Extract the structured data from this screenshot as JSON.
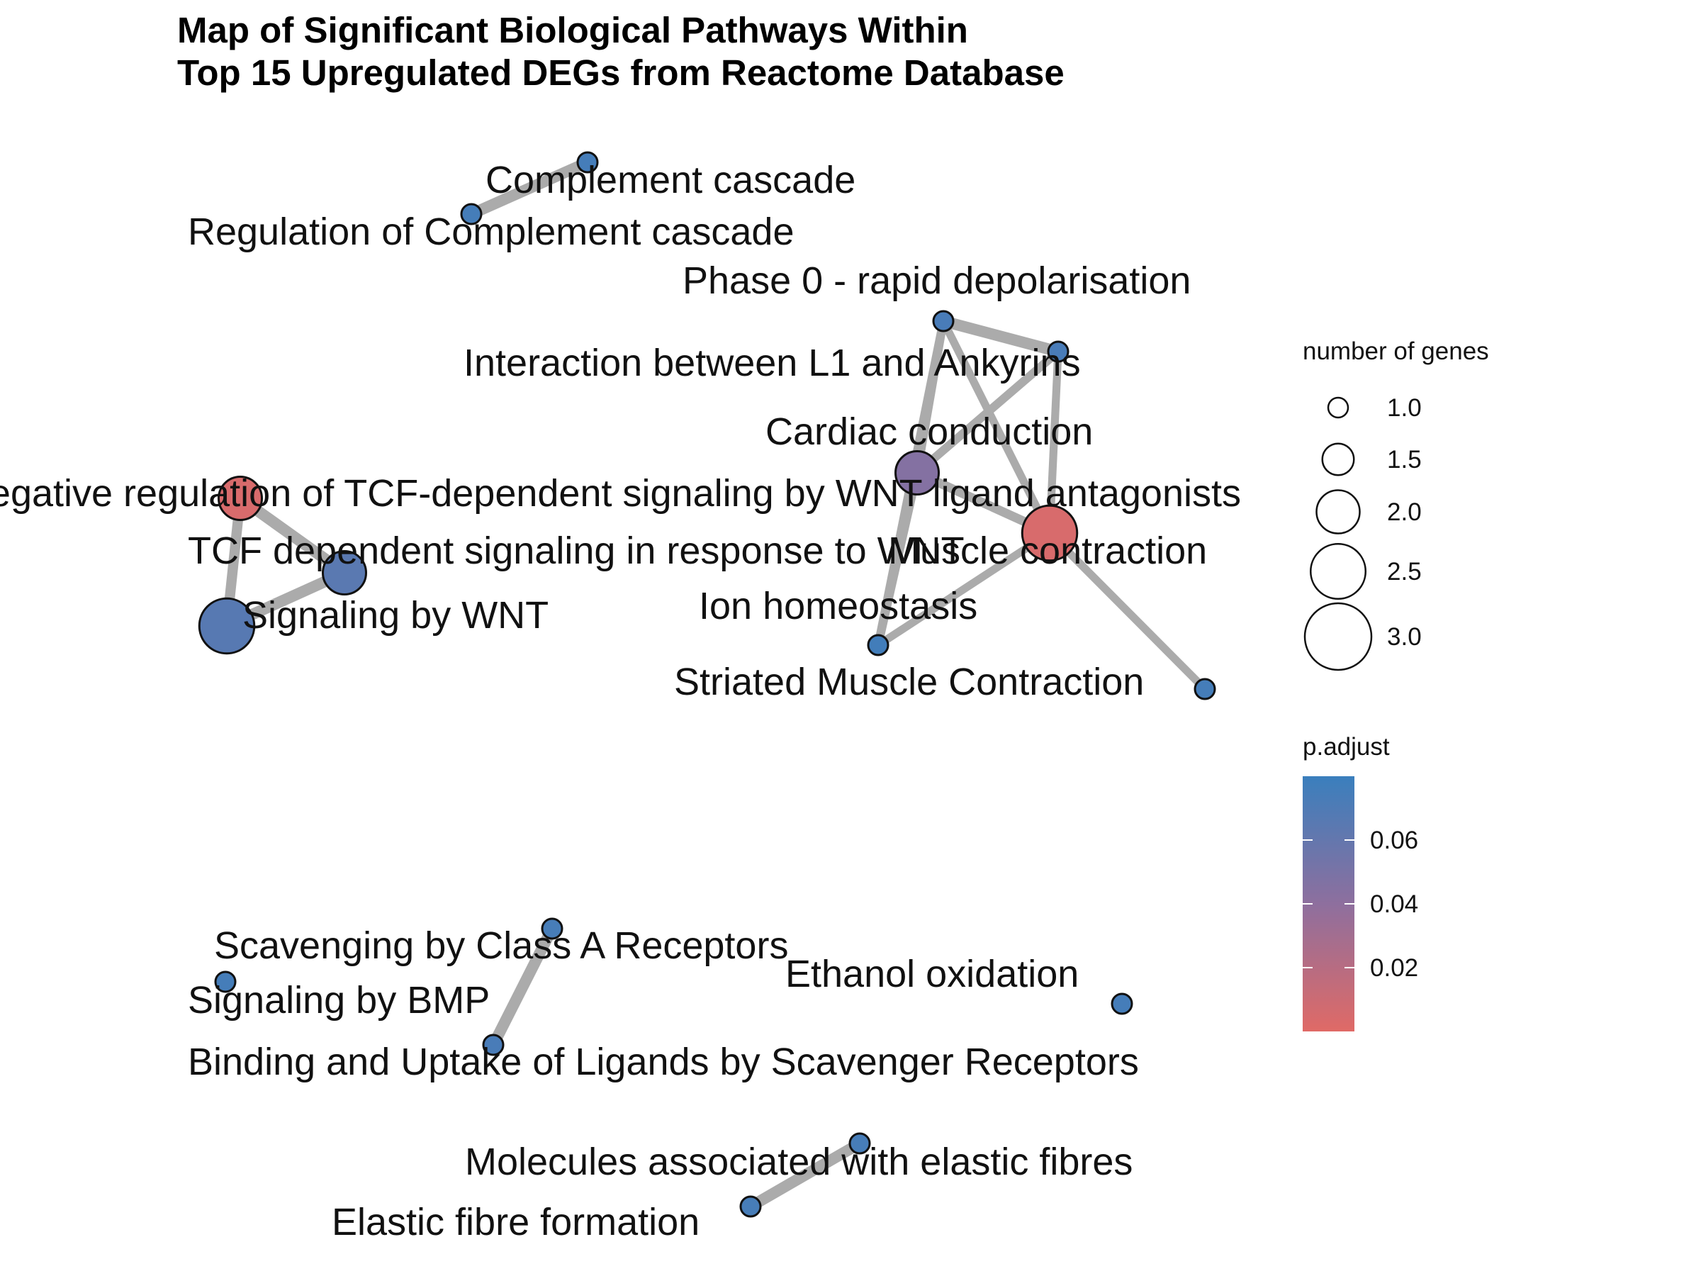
{
  "title": {
    "line1": "Map of Significant Biological Pathways Within",
    "line2": "Top 15 Upregulated DEGs from Reactome Database"
  },
  "colors": {
    "edge": "#ababab",
    "high_p": "#3a7fbd",
    "low_p": "#e06a66",
    "node_stroke": "#111111"
  },
  "legend": {
    "size_title": "number of genes",
    "size_ticks": [
      "1.0",
      "1.5",
      "2.0",
      "2.5",
      "3.0"
    ],
    "size_values": [
      1.0,
      1.5,
      2.0,
      2.5,
      3.0
    ],
    "color_title": "p.adjust",
    "color_ticks": [
      "0.06",
      "0.04",
      "0.02"
    ],
    "color_values": [
      0.06,
      0.04,
      0.02
    ],
    "color_range": [
      0.0,
      0.08
    ]
  },
  "chart_data": {
    "type": "network",
    "nodes": [
      {
        "id": "complement",
        "label": "Complement cascade",
        "genes": 1,
        "p_adjust": 0.075
      },
      {
        "id": "reg_complement",
        "label": "Regulation of Complement cascade",
        "genes": 1,
        "p_adjust": 0.075
      },
      {
        "id": "phase0",
        "label": "Phase 0 - rapid depolarisation",
        "genes": 1,
        "p_adjust": 0.073
      },
      {
        "id": "l1_ankyrins",
        "label": "Interaction between L1 and Ankyrins",
        "genes": 1,
        "p_adjust": 0.073
      },
      {
        "id": "cardiac",
        "label": "Cardiac conduction",
        "genes": 2,
        "p_adjust": 0.045
      },
      {
        "id": "muscle",
        "label": "Muscle contraction",
        "genes": 2.5,
        "p_adjust": 0.004
      },
      {
        "id": "ion_homeo",
        "label": "Ion homeostasis",
        "genes": 1,
        "p_adjust": 0.076
      },
      {
        "id": "striated",
        "label": "Striated Muscle Contraction",
        "genes": 1,
        "p_adjust": 0.075
      },
      {
        "id": "neg_tcf",
        "label": "Negative regulation of TCF-dependent signaling by WNT ligand antagonists",
        "genes": 2,
        "p_adjust": 0.004
      },
      {
        "id": "tcf_wnt",
        "label": "TCF dependent signaling in response to WNT",
        "genes": 2,
        "p_adjust": 0.065
      },
      {
        "id": "sig_wnt",
        "label": "Signaling by WNT",
        "genes": 2.5,
        "p_adjust": 0.066
      },
      {
        "id": "scav_a",
        "label": "Scavenging by Class A Receptors",
        "genes": 1,
        "p_adjust": 0.074
      },
      {
        "id": "sig_bmp",
        "label": "Signaling by BMP",
        "genes": 1,
        "p_adjust": 0.075
      },
      {
        "id": "binding_scav",
        "label": "Binding and Uptake of Ligands by Scavenger Receptors",
        "genes": 1,
        "p_adjust": 0.073
      },
      {
        "id": "ethanol",
        "label": "Ethanol oxidation",
        "genes": 1,
        "p_adjust": 0.075
      },
      {
        "id": "elastic_mol",
        "label": "Molecules associated with elastic fibres",
        "genes": 1,
        "p_adjust": 0.074
      },
      {
        "id": "elastic_form",
        "label": "Elastic fibre formation",
        "genes": 1,
        "p_adjust": 0.074
      }
    ],
    "edges": [
      {
        "source": "complement",
        "target": "reg_complement",
        "weight": 1.0
      },
      {
        "source": "phase0",
        "target": "l1_ankyrins",
        "weight": 1.0
      },
      {
        "source": "phase0",
        "target": "cardiac",
        "weight": 0.5
      },
      {
        "source": "phase0",
        "target": "muscle",
        "weight": 0.4
      },
      {
        "source": "phase0",
        "target": "ion_homeo",
        "weight": 0.5
      },
      {
        "source": "l1_ankyrins",
        "target": "cardiac",
        "weight": 0.5
      },
      {
        "source": "l1_ankyrins",
        "target": "muscle",
        "weight": 0.4
      },
      {
        "source": "cardiac",
        "target": "muscle",
        "weight": 0.6
      },
      {
        "source": "cardiac",
        "target": "ion_homeo",
        "weight": 0.5
      },
      {
        "source": "muscle",
        "target": "ion_homeo",
        "weight": 0.4
      },
      {
        "source": "muscle",
        "target": "striated",
        "weight": 0.4
      },
      {
        "source": "neg_tcf",
        "target": "tcf_wnt",
        "weight": 1.0
      },
      {
        "source": "neg_tcf",
        "target": "sig_wnt",
        "weight": 0.8
      },
      {
        "source": "tcf_wnt",
        "target": "sig_wnt",
        "weight": 1.0
      },
      {
        "source": "scav_a",
        "target": "binding_scav",
        "weight": 1.0
      },
      {
        "source": "elastic_mol",
        "target": "elastic_form",
        "weight": 1.0
      }
    ]
  }
}
